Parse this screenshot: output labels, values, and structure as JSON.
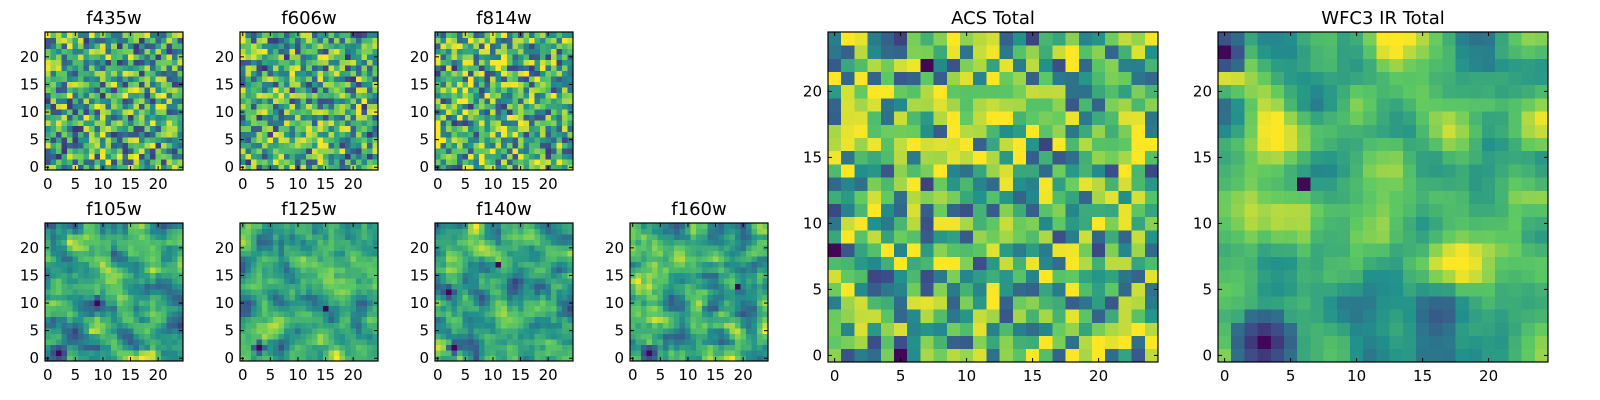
{
  "figure": {
    "colormap": "viridis",
    "colormap_stops": [
      "#440154",
      "#3b528b",
      "#21918c",
      "#5ec962",
      "#fde725"
    ],
    "value_range": [
      0,
      1
    ],
    "frame_color": "#000000",
    "background": "#ffffff"
  },
  "chart_data": [
    {
      "id": "f435w",
      "type": "heatmap",
      "title": "f435w",
      "grid": [
        25,
        25
      ],
      "xlim": [
        -0.5,
        24.5
      ],
      "ylim": [
        -0.5,
        24.5
      ],
      "xticks": [
        0,
        5,
        10,
        15,
        20
      ],
      "yticks": [
        0,
        5,
        10,
        15,
        20
      ],
      "xtick_labels": [
        "0",
        "5",
        "10",
        "15",
        "20"
      ],
      "ytick_labels": [
        "0",
        "5",
        "10",
        "15",
        "20"
      ],
      "seed": 435,
      "smoothness": 0,
      "bias": 0.0,
      "dark_patches": []
    },
    {
      "id": "f606w",
      "type": "heatmap",
      "title": "f606w",
      "grid": [
        25,
        25
      ],
      "xlim": [
        -0.5,
        24.5
      ],
      "ylim": [
        -0.5,
        24.5
      ],
      "xticks": [
        0,
        5,
        10,
        15,
        20
      ],
      "yticks": [
        0,
        5,
        10,
        15,
        20
      ],
      "xtick_labels": [
        "0",
        "5",
        "10",
        "15",
        "20"
      ],
      "ytick_labels": [
        "0",
        "5",
        "10",
        "15",
        "20"
      ],
      "seed": 606,
      "smoothness": 0,
      "bias": 0.0,
      "dark_patches": []
    },
    {
      "id": "f814w",
      "type": "heatmap",
      "title": "f814w",
      "grid": [
        25,
        25
      ],
      "xlim": [
        -0.5,
        24.5
      ],
      "ylim": [
        -0.5,
        24.5
      ],
      "xticks": [
        0,
        5,
        10,
        15,
        20
      ],
      "yticks": [
        0,
        5,
        10,
        15,
        20
      ],
      "xtick_labels": [
        "0",
        "5",
        "10",
        "15",
        "20"
      ],
      "ytick_labels": [
        "0",
        "5",
        "10",
        "15",
        "20"
      ],
      "seed": 814,
      "smoothness": 0,
      "bias": 0.02,
      "dark_patches": []
    },
    {
      "id": "f105w",
      "type": "heatmap",
      "title": "f105w",
      "grid": [
        25,
        25
      ],
      "xlim": [
        -0.5,
        24.5
      ],
      "ylim": [
        -0.5,
        24.5
      ],
      "xticks": [
        0,
        5,
        10,
        15,
        20
      ],
      "yticks": [
        0,
        5,
        10,
        15,
        20
      ],
      "xtick_labels": [
        "0",
        "5",
        "10",
        "15",
        "20"
      ],
      "ytick_labels": [
        "0",
        "5",
        "10",
        "15",
        "20"
      ],
      "seed": 105,
      "smoothness": 1,
      "bias": 0.0,
      "dark_patches": [
        {
          "x": 2,
          "y": 1,
          "r": 1.6
        },
        {
          "x": 9,
          "y": 10,
          "r": 1.4
        }
      ]
    },
    {
      "id": "f125w",
      "type": "heatmap",
      "title": "f125w",
      "grid": [
        25,
        25
      ],
      "xlim": [
        -0.5,
        24.5
      ],
      "ylim": [
        -0.5,
        24.5
      ],
      "xticks": [
        0,
        5,
        10,
        15,
        20
      ],
      "yticks": [
        0,
        5,
        10,
        15,
        20
      ],
      "xtick_labels": [
        "0",
        "5",
        "10",
        "15",
        "20"
      ],
      "ytick_labels": [
        "0",
        "5",
        "10",
        "15",
        "20"
      ],
      "seed": 125,
      "smoothness": 1,
      "bias": 0.04,
      "dark_patches": [
        {
          "x": 3,
          "y": 2,
          "r": 1.2
        },
        {
          "x": 15,
          "y": 9,
          "r": 1.0
        }
      ]
    },
    {
      "id": "f140w",
      "type": "heatmap",
      "title": "f140w",
      "grid": [
        25,
        25
      ],
      "xlim": [
        -0.5,
        24.5
      ],
      "ylim": [
        -0.5,
        24.5
      ],
      "xticks": [
        0,
        5,
        10,
        15,
        20
      ],
      "yticks": [
        0,
        5,
        10,
        15,
        20
      ],
      "xtick_labels": [
        "0",
        "5",
        "10",
        "15",
        "20"
      ],
      "ytick_labels": [
        "0",
        "5",
        "10",
        "15",
        "20"
      ],
      "seed": 140,
      "smoothness": 1,
      "bias": 0.0,
      "dark_patches": [
        {
          "x": 2,
          "y": 12,
          "r": 1.4
        },
        {
          "x": 11,
          "y": 17,
          "r": 1.0
        },
        {
          "x": 3,
          "y": 2,
          "r": 1.2
        }
      ]
    },
    {
      "id": "f160w",
      "type": "heatmap",
      "title": "f160w",
      "grid": [
        25,
        25
      ],
      "xlim": [
        -0.5,
        24.5
      ],
      "ylim": [
        -0.5,
        24.5
      ],
      "xticks": [
        0,
        5,
        10,
        15,
        20
      ],
      "yticks": [
        0,
        5,
        10,
        15,
        20
      ],
      "xtick_labels": [
        "0",
        "5",
        "10",
        "15",
        "20"
      ],
      "ytick_labels": [
        "0",
        "5",
        "10",
        "15",
        "20"
      ],
      "seed": 160,
      "smoothness": 1,
      "bias": 0.03,
      "dark_patches": [
        {
          "x": 3,
          "y": 1,
          "r": 1.6
        },
        {
          "x": 19,
          "y": 13,
          "r": 1.0
        }
      ]
    },
    {
      "id": "acs-total",
      "type": "heatmap",
      "title": "ACS Total",
      "grid": [
        25,
        25
      ],
      "xlim": [
        -0.5,
        24.5
      ],
      "ylim": [
        -0.5,
        24.5
      ],
      "xticks": [
        0,
        5,
        10,
        15,
        20
      ],
      "yticks": [
        0,
        5,
        10,
        15,
        20
      ],
      "xtick_labels": [
        "0",
        "5",
        "10",
        "15",
        "20"
      ],
      "ytick_labels": [
        "0",
        "5",
        "10",
        "15",
        "20"
      ],
      "seed": 777,
      "smoothness": 0,
      "bias": 0.05,
      "dark_patches": [
        {
          "x": 7,
          "y": 22,
          "r": 0.9
        },
        {
          "x": 0,
          "y": 8,
          "r": 0.7
        },
        {
          "x": 5,
          "y": 0,
          "r": 0.7
        }
      ]
    },
    {
      "id": "wfc3-ir-total",
      "type": "heatmap",
      "title": "WFC3 IR Total",
      "grid": [
        25,
        25
      ],
      "xlim": [
        -0.5,
        24.5
      ],
      "ylim": [
        -0.5,
        24.5
      ],
      "xticks": [
        0,
        5,
        10,
        15,
        20
      ],
      "yticks": [
        0,
        5,
        10,
        15,
        20
      ],
      "xtick_labels": [
        "0",
        "5",
        "10",
        "15",
        "20"
      ],
      "ytick_labels": [
        "0",
        "5",
        "10",
        "15",
        "20"
      ],
      "seed": 999,
      "smoothness": 2,
      "bias": 0.08,
      "dark_patches": [
        {
          "x": 3,
          "y": 1,
          "r": 2.3
        },
        {
          "x": 6,
          "y": 13,
          "r": 0.8
        },
        {
          "x": 0,
          "y": 23,
          "r": 1.5
        }
      ]
    }
  ]
}
